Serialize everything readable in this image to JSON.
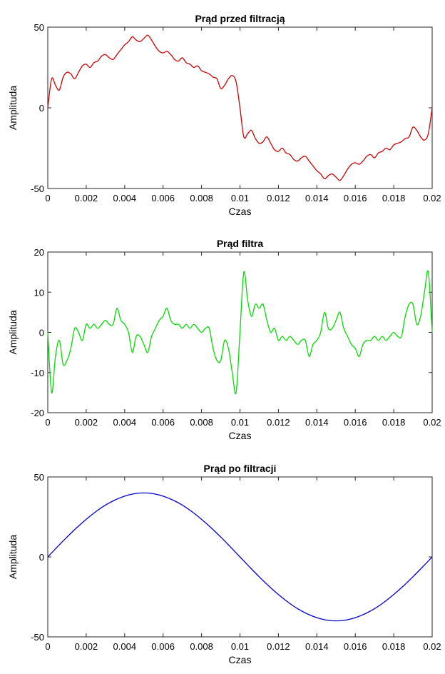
{
  "figure": {
    "background": "#ffffff"
  },
  "chart_data": [
    {
      "type": "line",
      "title": "Prąd przed filtracją",
      "xlabel": "Czas",
      "ylabel": "Amplituda",
      "xlim": [
        0,
        0.02
      ],
      "ylim": [
        -50,
        50
      ],
      "xticks": [
        "0",
        "0.002",
        "0.004",
        "0.006",
        "0.008",
        "0.01",
        "0.012",
        "0.014",
        "0.016",
        "0.018",
        "0.02"
      ],
      "yticks": [
        "50",
        "0",
        "-50"
      ],
      "grid": false,
      "series": [
        {
          "color": "#cc0000",
          "x": [
            0,
            0.0002,
            0.0004,
            0.0006,
            0.0008,
            0.001,
            0.0012,
            0.0014,
            0.0016,
            0.0018,
            0.002,
            0.0022,
            0.0024,
            0.0026,
            0.0028,
            0.003,
            0.0032,
            0.0034,
            0.0036,
            0.0038,
            0.004,
            0.0042,
            0.0044,
            0.0046,
            0.0048,
            0.005,
            0.0052,
            0.0054,
            0.0056,
            0.0058,
            0.006,
            0.0062,
            0.0064,
            0.0066,
            0.0068,
            0.007,
            0.0072,
            0.0074,
            0.0076,
            0.0078,
            0.008,
            0.0082,
            0.0084,
            0.0086,
            0.0088,
            0.009,
            0.0092,
            0.0094,
            0.0096,
            0.0098,
            0.01,
            0.0102,
            0.0104,
            0.0106,
            0.0108,
            0.011,
            0.0112,
            0.0114,
            0.0116,
            0.0118,
            0.012,
            0.0122,
            0.0124,
            0.0126,
            0.0128,
            0.013,
            0.0132,
            0.0134,
            0.0136,
            0.0138,
            0.014,
            0.0142,
            0.0144,
            0.0146,
            0.0148,
            0.015,
            0.0152,
            0.0154,
            0.0156,
            0.0158,
            0.016,
            0.0162,
            0.0164,
            0.0166,
            0.0168,
            0.017,
            0.0172,
            0.0174,
            0.0176,
            0.0178,
            0.018,
            0.0182,
            0.0184,
            0.0186,
            0.0188,
            0.019,
            0.0192,
            0.0194,
            0.0196,
            0.0198,
            0.02
          ],
          "y": [
            0,
            18,
            14,
            11,
            19,
            22,
            21,
            18,
            22,
            26,
            27,
            25,
            28,
            29,
            32,
            33,
            31,
            30,
            33,
            36,
            39,
            41,
            44,
            42,
            41,
            43,
            45,
            42,
            38,
            35,
            34,
            35,
            33,
            30,
            29,
            31,
            28,
            27,
            25,
            26,
            23,
            22,
            21,
            19,
            18,
            12,
            14,
            18,
            20,
            16,
            0,
            -18,
            -16,
            -14,
            -19,
            -22,
            -21,
            -18,
            -22,
            -26,
            -27,
            -25,
            -28,
            -29,
            -32,
            -33,
            -31,
            -30,
            -33,
            -36,
            -39,
            -41,
            -44,
            -42,
            -41,
            -43,
            -45,
            -42,
            -38,
            -35,
            -34,
            -35,
            -33,
            -30,
            -29,
            -31,
            -28,
            -27,
            -25,
            -26,
            -23,
            -22,
            -21,
            -19,
            -18,
            -12,
            -14,
            -18,
            -20,
            -16,
            0
          ]
        }
      ]
    },
    {
      "type": "line",
      "title": "Prąd filtra",
      "xlabel": "Czas",
      "ylabel": "Amplituda",
      "xlim": [
        0,
        0.02
      ],
      "ylim": [
        -20,
        20
      ],
      "xticks": [
        "0",
        "0.002",
        "0.004",
        "0.006",
        "0.008",
        "0.01",
        "0.012",
        "0.014",
        "0.016",
        "0.018",
        "0.02"
      ],
      "yticks": [
        "20",
        "10",
        "0",
        "-10",
        "-20"
      ],
      "grid": false,
      "series": [
        {
          "color": "#00dd00",
          "x": [
            0,
            0.0002,
            0.0004,
            0.0006,
            0.0008,
            0.001,
            0.0012,
            0.0014,
            0.0016,
            0.0018,
            0.002,
            0.0022,
            0.0024,
            0.0026,
            0.0028,
            0.003,
            0.0032,
            0.0034,
            0.0036,
            0.0038,
            0.004,
            0.0042,
            0.0044,
            0.0046,
            0.0048,
            0.005,
            0.0052,
            0.0054,
            0.0056,
            0.0058,
            0.006,
            0.0062,
            0.0064,
            0.0066,
            0.0068,
            0.007,
            0.0072,
            0.0074,
            0.0076,
            0.0078,
            0.008,
            0.0082,
            0.0084,
            0.0086,
            0.0088,
            0.009,
            0.0092,
            0.0094,
            0.0096,
            0.0098,
            0.01,
            0.0102,
            0.0104,
            0.0106,
            0.0108,
            0.011,
            0.0112,
            0.0114,
            0.0116,
            0.0118,
            0.012,
            0.0122,
            0.0124,
            0.0126,
            0.0128,
            0.013,
            0.0132,
            0.0134,
            0.0136,
            0.0138,
            0.014,
            0.0142,
            0.0144,
            0.0146,
            0.0148,
            0.015,
            0.0152,
            0.0154,
            0.0156,
            0.0158,
            0.016,
            0.0162,
            0.0164,
            0.0166,
            0.0168,
            0.017,
            0.0172,
            0.0174,
            0.0176,
            0.0178,
            0.018,
            0.0182,
            0.0184,
            0.0186,
            0.0188,
            0.019,
            0.0192,
            0.0194,
            0.0196,
            0.0198,
            0.02
          ],
          "y": [
            0,
            -15,
            -6,
            -2,
            -8,
            -7,
            -4,
            1,
            0,
            -2,
            2,
            1,
            2,
            1,
            2,
            3,
            2,
            2,
            6,
            3,
            2,
            0,
            -5,
            -1,
            -1,
            -3,
            -5,
            -1,
            1,
            3,
            4,
            6,
            3,
            2,
            2,
            1,
            2,
            1,
            2,
            1,
            0,
            1,
            1,
            -4,
            -7,
            -7,
            -2,
            -4,
            -10,
            -15,
            0,
            15,
            8,
            4,
            7,
            6,
            7,
            3,
            0,
            1,
            -2,
            -1,
            -2,
            -1,
            -2,
            -3,
            -2,
            -2,
            -6,
            -3,
            -2,
            0,
            5,
            1,
            1,
            3,
            5,
            1,
            -1,
            -3,
            -4,
            -6,
            -3,
            -2,
            -2,
            -1,
            -2,
            -1,
            -2,
            -1,
            0,
            -1,
            -1,
            4,
            7,
            7,
            2,
            4,
            10,
            15,
            0
          ]
        }
      ]
    },
    {
      "type": "line",
      "title": "Prąd po filtracji",
      "xlabel": "Czas",
      "ylabel": "Amplituda",
      "xlim": [
        0,
        0.02
      ],
      "ylim": [
        -50,
        50
      ],
      "xticks": [
        "0",
        "0.002",
        "0.004",
        "0.006",
        "0.008",
        "0.01",
        "0.012",
        "0.014",
        "0.016",
        "0.018",
        "0.02"
      ],
      "yticks": [
        "50",
        "0",
        "-50"
      ],
      "grid": false,
      "series": [
        {
          "color": "#0000cc",
          "x": [
            0,
            0.0005,
            0.001,
            0.0015,
            0.002,
            0.0025,
            0.003,
            0.0035,
            0.004,
            0.0045,
            0.005,
            0.0055,
            0.006,
            0.0065,
            0.007,
            0.0075,
            0.008,
            0.0085,
            0.009,
            0.0095,
            0.01,
            0.0105,
            0.011,
            0.0115,
            0.012,
            0.0125,
            0.013,
            0.0135,
            0.014,
            0.0145,
            0.015,
            0.0155,
            0.016,
            0.0165,
            0.017,
            0.0175,
            0.018,
            0.0185,
            0.019,
            0.0195,
            0.02
          ],
          "y": [
            0,
            6.3,
            12.4,
            18.2,
            23.5,
            28.3,
            32.4,
            35.6,
            38.0,
            39.5,
            40.0,
            39.5,
            38.0,
            35.6,
            32.4,
            28.3,
            23.5,
            18.2,
            12.4,
            6.3,
            0,
            -6.3,
            -12.4,
            -18.2,
            -23.5,
            -28.3,
            -32.4,
            -35.6,
            -38.0,
            -39.5,
            -40.0,
            -39.5,
            -38.0,
            -35.6,
            -32.4,
            -28.3,
            -23.5,
            -18.2,
            -12.4,
            -6.3,
            0
          ]
        }
      ]
    }
  ]
}
